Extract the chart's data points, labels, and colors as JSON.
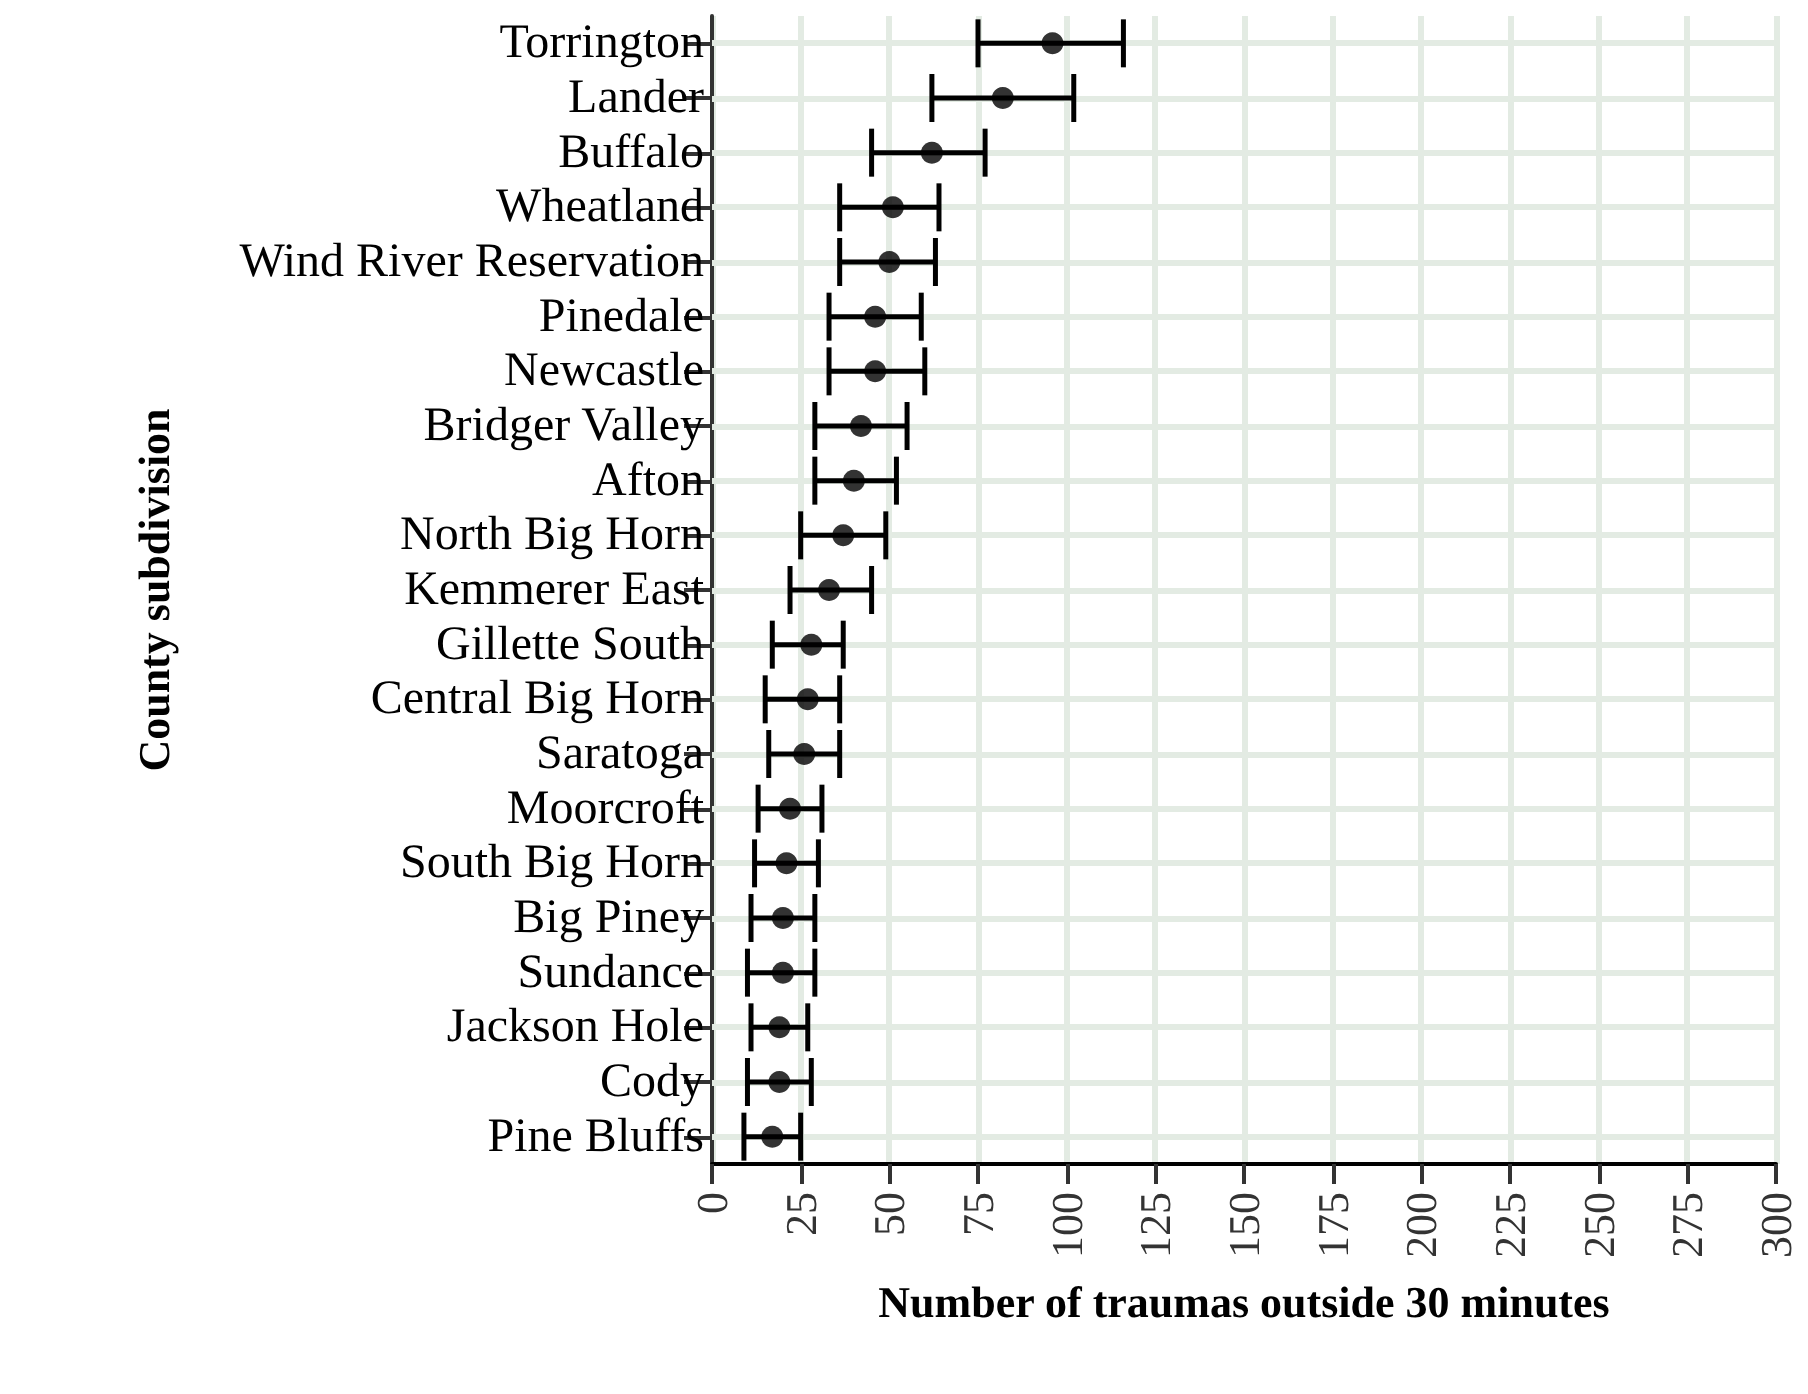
{
  "chart_data": {
    "type": "scatter",
    "orientation": "horizontal",
    "xlabel": "Number of traumas outside 30 minutes",
    "ylabel": "County subdivision",
    "categories": [
      "Torrington",
      "Lander",
      "Buffalo",
      "Wheatland",
      "Wind River Reservation",
      "Pinedale",
      "Newcastle",
      "Bridger Valley",
      "Afton",
      "North Big Horn",
      "Kemmerer East",
      "Gillette South",
      "Central Big Horn",
      "Saratoga",
      "Moorcroft",
      "South Big Horn",
      "Big Piney",
      "Sundance",
      "Jackson Hole",
      "Cody",
      "Pine Bluffs"
    ],
    "values": [
      96,
      82,
      62,
      51,
      50,
      46,
      46,
      42,
      40,
      37,
      33,
      28,
      27,
      26,
      22,
      21,
      20,
      20,
      19,
      19,
      17
    ],
    "errors": [
      [
        75,
        116
      ],
      [
        62,
        102
      ],
      [
        45,
        77
      ],
      [
        36,
        64
      ],
      [
        36,
        63
      ],
      [
        33,
        59
      ],
      [
        33,
        60
      ],
      [
        29,
        55
      ],
      [
        29,
        52
      ],
      [
        25,
        49
      ],
      [
        22,
        45
      ],
      [
        17,
        37
      ],
      [
        15,
        36
      ],
      [
        16,
        36
      ],
      [
        13,
        31
      ],
      [
        12,
        30
      ],
      [
        11,
        29
      ],
      [
        10,
        29
      ],
      [
        11,
        27
      ],
      [
        10,
        28
      ],
      [
        9,
        25
      ]
    ],
    "color": "#000000",
    "xlim": [
      0,
      300
    ],
    "xticks": [
      0,
      25,
      50,
      75,
      100,
      125,
      150,
      175,
      200,
      225,
      250,
      275,
      300
    ],
    "grid": true,
    "marker": "circle"
  }
}
